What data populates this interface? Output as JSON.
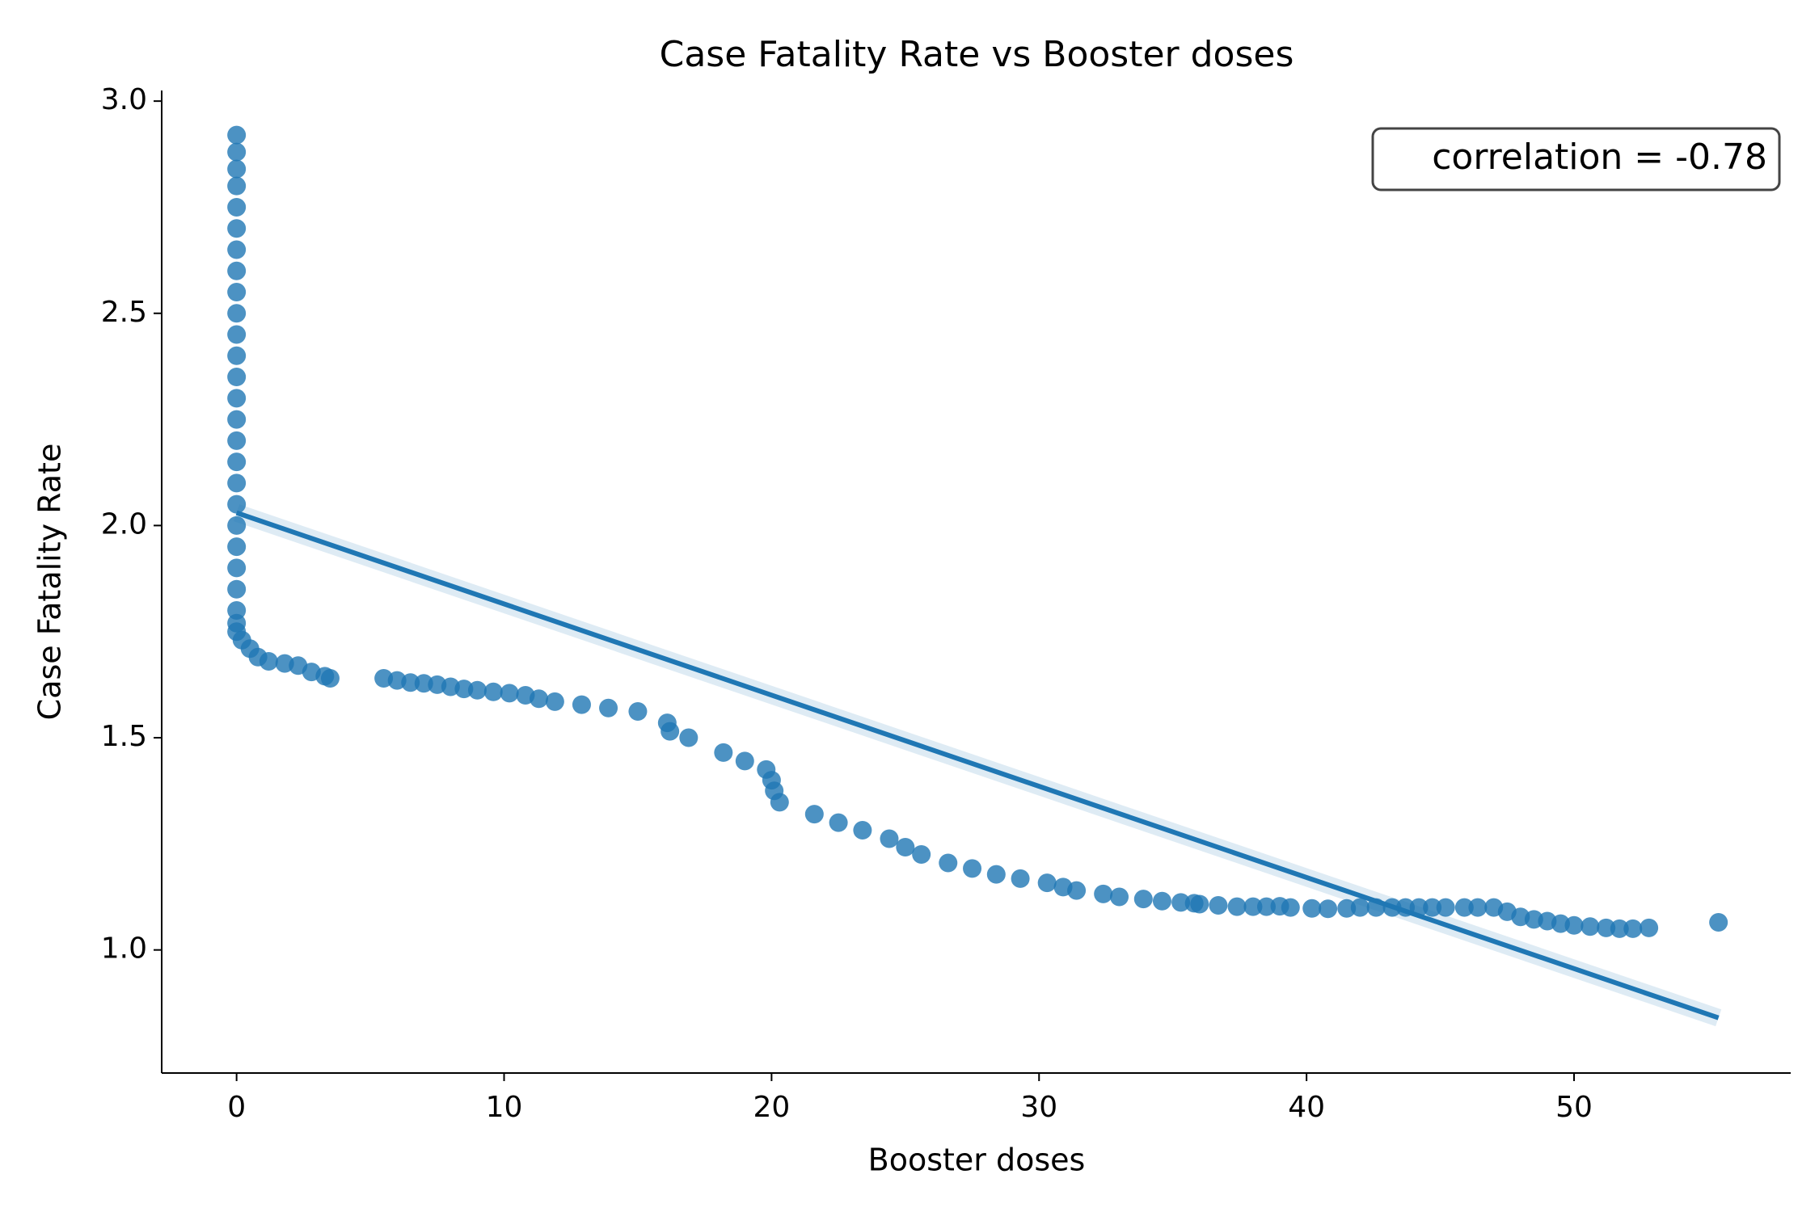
{
  "chart_data": {
    "type": "scatter",
    "title": "Case Fatality Rate vs Booster doses",
    "x_label": "Booster doses",
    "y_label": "Case Fatality Rate",
    "annotation": "correlation = -0.78",
    "xlim": [
      -2.8,
      58.1
    ],
    "ylim": [
      0.71,
      3.025
    ],
    "xticks": [
      0,
      10,
      20,
      30,
      40,
      50
    ],
    "yticks": [
      {
        "value": 1.0,
        "label": "1.0"
      },
      1.5,
      {
        "value": 2.0,
        "label": "2.0"
      },
      2.5,
      {
        "value": 3.0,
        "label": "3.0"
      }
    ],
    "color": "#1f77b4",
    "x": [
      0,
      0,
      0,
      0,
      0,
      0,
      0,
      0,
      0,
      0,
      0,
      0,
      0,
      0,
      0,
      0,
      0,
      0,
      0,
      0,
      0,
      0,
      0,
      0,
      0,
      0,
      0.2,
      0.5,
      0.8,
      1.2,
      1.8,
      2.3,
      2.8,
      3.3,
      3.5,
      5.5,
      6.0,
      6.5,
      7.0,
      7.5,
      8.0,
      8.5,
      9.0,
      9.6,
      10.2,
      10.8,
      11.3,
      11.9,
      12.9,
      13.9,
      15.0,
      16.1,
      16.2,
      16.9,
      18.2,
      19.0,
      19.8,
      20.0,
      20.1,
      20.3,
      21.6,
      22.5,
      23.4,
      24.4,
      25.0,
      25.6,
      26.6,
      27.5,
      28.4,
      29.3,
      30.3,
      30.9,
      31.4,
      32.4,
      33.0,
      33.9,
      34.6,
      35.3,
      35.8,
      36.0,
      36.7,
      37.4,
      38.0,
      38.5,
      39.0,
      39.4,
      40.2,
      40.8,
      41.5,
      42.0,
      42.6,
      43.2,
      43.7,
      44.2,
      44.7,
      45.2,
      45.9,
      46.4,
      47.0,
      47.5,
      48.0,
      48.5,
      49.0,
      49.5,
      50.0,
      50.6,
      51.2,
      51.7,
      52.2,
      52.8,
      55.4
    ],
    "y": [
      2.92,
      2.88,
      2.84,
      2.8,
      2.75,
      2.7,
      2.65,
      2.6,
      2.55,
      2.5,
      2.45,
      2.4,
      2.35,
      2.3,
      2.25,
      2.2,
      2.15,
      2.1,
      2.05,
      2.0,
      1.95,
      1.9,
      1.85,
      1.8,
      1.77,
      1.75,
      1.73,
      1.71,
      1.69,
      1.68,
      1.675,
      1.67,
      1.655,
      1.645,
      1.64,
      1.64,
      1.635,
      1.63,
      1.628,
      1.625,
      1.62,
      1.615,
      1.612,
      1.608,
      1.605,
      1.6,
      1.592,
      1.585,
      1.578,
      1.57,
      1.562,
      1.535,
      1.515,
      1.5,
      1.465,
      1.445,
      1.425,
      1.4,
      1.375,
      1.348,
      1.32,
      1.3,
      1.282,
      1.262,
      1.242,
      1.225,
      1.205,
      1.192,
      1.178,
      1.168,
      1.158,
      1.148,
      1.14,
      1.132,
      1.125,
      1.12,
      1.115,
      1.112,
      1.11,
      1.108,
      1.105,
      1.102,
      1.102,
      1.102,
      1.103,
      1.1,
      1.098,
      1.097,
      1.098,
      1.1,
      1.1,
      1.1,
      1.1,
      1.1,
      1.1,
      1.1,
      1.1,
      1.1,
      1.1,
      1.09,
      1.078,
      1.072,
      1.068,
      1.062,
      1.058,
      1.055,
      1.052,
      1.05,
      1.05,
      1.052,
      1.065
    ],
    "fit": {
      "x": [
        0,
        55.4
      ],
      "y": [
        2.03,
        0.84
      ]
    }
  }
}
